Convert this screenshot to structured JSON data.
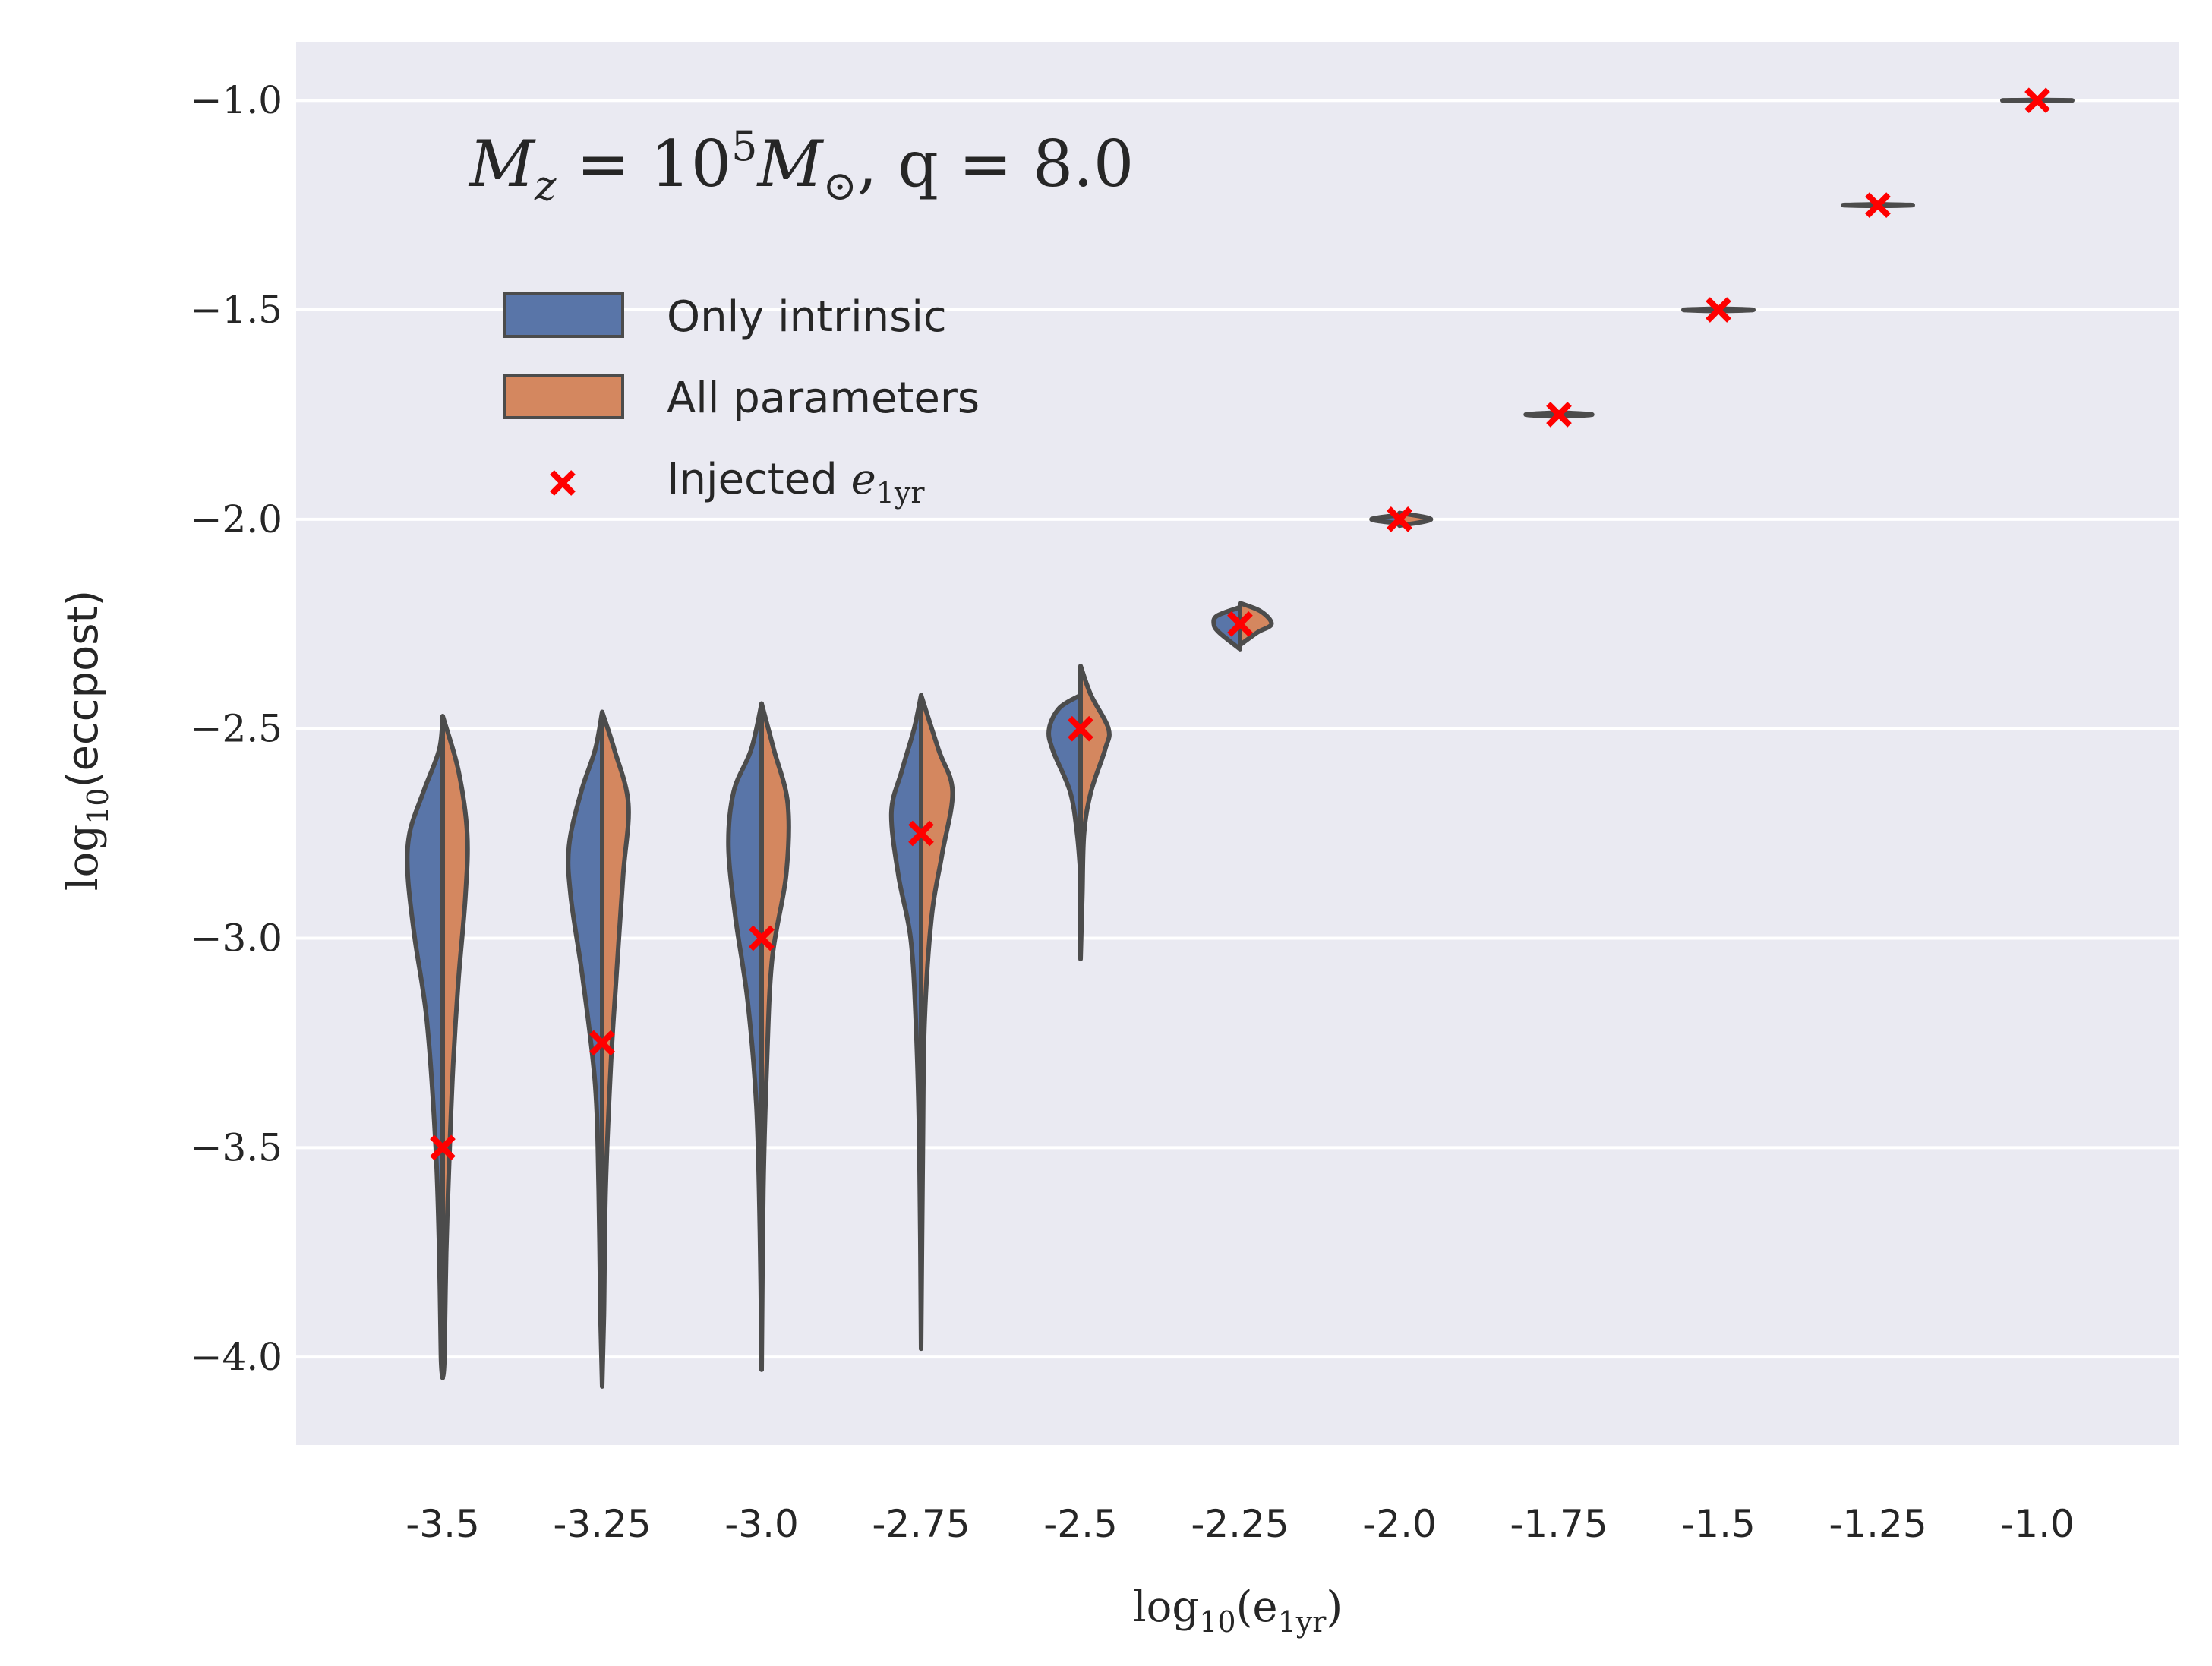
{
  "chart_data": {
    "type": "violin",
    "annotation": {
      "prefix": "M",
      "prefix_sub": "z",
      "eq1": " = 10",
      "exp": "5",
      "mid": "M",
      "mid_sub": "⊙",
      "rest_q": ", q",
      "rest_val": " = 8.0"
    },
    "xlabel": {
      "main": "log",
      "sub": "10",
      "arg_open": "(e",
      "arg_sub": "1yr",
      "arg_close": ")"
    },
    "ylabel": {
      "main": "log",
      "sub": "10",
      "arg": "(eccpost)"
    },
    "categories": [
      "-3.5",
      "-3.25",
      "-3.0",
      "-2.75",
      "-2.5",
      "-2.25",
      "-2.0",
      "-1.75",
      "-1.5",
      "-1.25",
      "-1.0"
    ],
    "yticks": [
      {
        "value": -1.0,
        "label": "−1.0"
      },
      {
        "value": -1.5,
        "label": "−1.5"
      },
      {
        "value": -2.0,
        "label": "−2.0"
      },
      {
        "value": -2.5,
        "label": "−2.5"
      },
      {
        "value": -3.0,
        "label": "−3.0"
      },
      {
        "value": -3.5,
        "label": "−3.5"
      },
      {
        "value": -4.0,
        "label": "−4.0"
      }
    ],
    "ylim": [
      -4.21,
      -0.86
    ],
    "grid": true,
    "legend": {
      "placement": "upper-left",
      "entries": [
        {
          "label": "Only intrinsic",
          "kind": "patch",
          "color": "#5975a8"
        },
        {
          "label": "All parameters",
          "kind": "patch",
          "color": "#d4875f"
        },
        {
          "label_main": "Injected ",
          "label_math": "e",
          "label_sub": "1yr",
          "kind": "marker",
          "color": "#ff0000"
        }
      ]
    },
    "series": [
      {
        "name": "Only intrinsic",
        "color": "#5975a8"
      },
      {
        "name": "All parameters",
        "color": "#d4875f"
      }
    ],
    "injected": [
      -3.5,
      -3.25,
      -3.0,
      -2.75,
      -2.5,
      -2.25,
      -2.0,
      -1.75,
      -1.5,
      -1.25,
      -1.0
    ],
    "violins": [
      {
        "x": "-3.5",
        "left": [
          [
            -2.47,
            0.0
          ],
          [
            -2.55,
            0.02
          ],
          [
            -2.65,
            0.11
          ],
          [
            -2.75,
            0.19
          ],
          [
            -2.85,
            0.2
          ],
          [
            -3.0,
            0.16
          ],
          [
            -3.2,
            0.09
          ],
          [
            -3.5,
            0.04
          ],
          [
            -3.75,
            0.02
          ],
          [
            -4.0,
            0.01
          ],
          [
            -4.05,
            0.0
          ]
        ],
        "right": [
          [
            -2.47,
            0.0
          ],
          [
            -2.6,
            0.09
          ],
          [
            -2.75,
            0.14
          ],
          [
            -2.9,
            0.13
          ],
          [
            -3.1,
            0.09
          ],
          [
            -3.3,
            0.06
          ],
          [
            -3.5,
            0.04
          ],
          [
            -3.75,
            0.02
          ],
          [
            -4.0,
            0.01
          ],
          [
            -4.05,
            0.0
          ]
        ]
      },
      {
        "x": "-3.25",
        "left": [
          [
            -2.46,
            0.0
          ],
          [
            -2.55,
            0.04
          ],
          [
            -2.65,
            0.12
          ],
          [
            -2.78,
            0.19
          ],
          [
            -2.9,
            0.18
          ],
          [
            -3.1,
            0.11
          ],
          [
            -3.35,
            0.04
          ],
          [
            -3.6,
            0.02
          ],
          [
            -3.9,
            0.01
          ],
          [
            -4.07,
            0.0
          ]
        ],
        "right": [
          [
            -2.46,
            0.0
          ],
          [
            -2.55,
            0.07
          ],
          [
            -2.68,
            0.15
          ],
          [
            -2.85,
            0.12
          ],
          [
            -3.1,
            0.08
          ],
          [
            -3.3,
            0.05
          ],
          [
            -3.6,
            0.02
          ],
          [
            -3.9,
            0.01
          ],
          [
            -4.07,
            0.0
          ]
        ]
      },
      {
        "x": "-3.0",
        "left": [
          [
            -2.44,
            0.0
          ],
          [
            -2.55,
            0.06
          ],
          [
            -2.65,
            0.16
          ],
          [
            -2.78,
            0.19
          ],
          [
            -2.95,
            0.15
          ],
          [
            -3.15,
            0.08
          ],
          [
            -3.4,
            0.03
          ],
          [
            -3.7,
            0.01
          ],
          [
            -4.03,
            0.0
          ]
        ],
        "right": [
          [
            -2.44,
            0.0
          ],
          [
            -2.55,
            0.07
          ],
          [
            -2.68,
            0.15
          ],
          [
            -2.85,
            0.14
          ],
          [
            -3.05,
            0.06
          ],
          [
            -3.3,
            0.03
          ],
          [
            -3.6,
            0.01
          ],
          [
            -4.03,
            0.0
          ]
        ]
      },
      {
        "x": "-2.75",
        "left": [
          [
            -2.42,
            0.0
          ],
          [
            -2.5,
            0.04
          ],
          [
            -2.6,
            0.11
          ],
          [
            -2.7,
            0.17
          ],
          [
            -2.85,
            0.13
          ],
          [
            -3.0,
            0.06
          ],
          [
            -3.2,
            0.03
          ],
          [
            -3.5,
            0.01
          ],
          [
            -3.98,
            0.0
          ]
        ],
        "right": [
          [
            -2.42,
            0.0
          ],
          [
            -2.55,
            0.1
          ],
          [
            -2.65,
            0.18
          ],
          [
            -2.8,
            0.12
          ],
          [
            -2.95,
            0.06
          ],
          [
            -3.2,
            0.02
          ],
          [
            -3.5,
            0.01
          ],
          [
            -3.98,
            0.0
          ]
        ]
      },
      {
        "x": "-2.5",
        "left": [
          [
            -2.42,
            0.0
          ],
          [
            -2.45,
            0.12
          ],
          [
            -2.5,
            0.18
          ],
          [
            -2.55,
            0.16
          ],
          [
            -2.65,
            0.06
          ],
          [
            -2.75,
            0.02
          ],
          [
            -2.85,
            0.0
          ]
        ],
        "right": [
          [
            -2.35,
            0.0
          ],
          [
            -2.42,
            0.06
          ],
          [
            -2.5,
            0.16
          ],
          [
            -2.55,
            0.14
          ],
          [
            -2.65,
            0.06
          ],
          [
            -2.75,
            0.02
          ],
          [
            -2.9,
            0.01
          ],
          [
            -3.05,
            0.0
          ]
        ]
      },
      {
        "x": "-2.25",
        "left": [
          [
            -2.21,
            0.0
          ],
          [
            -2.23,
            0.13
          ],
          [
            -2.25,
            0.15
          ],
          [
            -2.27,
            0.12
          ],
          [
            -2.31,
            0.0
          ]
        ],
        "right": [
          [
            -2.2,
            0.0
          ],
          [
            -2.22,
            0.12
          ],
          [
            -2.25,
            0.18
          ],
          [
            -2.27,
            0.1
          ],
          [
            -2.3,
            0.0
          ]
        ]
      },
      {
        "x": "-2.0",
        "left": [
          [
            -1.99,
            0.0
          ],
          [
            -2.0,
            0.16
          ],
          [
            -2.01,
            0.0
          ]
        ],
        "right": [
          [
            -1.985,
            0.0
          ],
          [
            -2.0,
            0.18
          ],
          [
            -2.015,
            0.0
          ]
        ]
      },
      {
        "x": "-1.75",
        "left": [
          [
            -1.745,
            0.0
          ],
          [
            -1.75,
            0.19
          ],
          [
            -1.755,
            0.0
          ]
        ],
        "right": [
          [
            -1.745,
            0.0
          ],
          [
            -1.75,
            0.19
          ],
          [
            -1.755,
            0.0
          ]
        ]
      },
      {
        "x": "-1.5",
        "left": [
          [
            -1.497,
            0.0
          ],
          [
            -1.5,
            0.2
          ],
          [
            -1.503,
            0.0
          ]
        ],
        "right": [
          [
            -1.497,
            0.0
          ],
          [
            -1.5,
            0.2
          ],
          [
            -1.503,
            0.0
          ]
        ]
      },
      {
        "x": "-1.25",
        "left": [
          [
            -1.248,
            0.0
          ],
          [
            -1.25,
            0.2
          ],
          [
            -1.252,
            0.0
          ]
        ],
        "right": [
          [
            -1.248,
            0.0
          ],
          [
            -1.25,
            0.2
          ],
          [
            -1.252,
            0.0
          ]
        ]
      },
      {
        "x": "-1.0",
        "left": [
          [
            -0.999,
            0.0
          ],
          [
            -1.0,
            0.2
          ],
          [
            -1.001,
            0.0
          ]
        ],
        "right": [
          [
            -0.999,
            0.0
          ],
          [
            -1.0,
            0.2
          ],
          [
            -1.001,
            0.0
          ]
        ]
      }
    ]
  }
}
